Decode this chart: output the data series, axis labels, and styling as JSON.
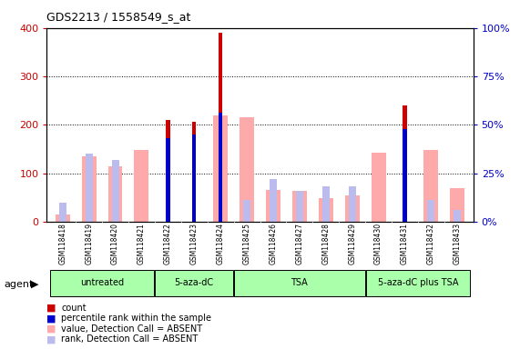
{
  "title": "GDS2213 / 1558549_s_at",
  "samples": [
    "GSM118418",
    "GSM118419",
    "GSM118420",
    "GSM118421",
    "GSM118422",
    "GSM118423",
    "GSM118424",
    "GSM118425",
    "GSM118426",
    "GSM118427",
    "GSM118428",
    "GSM118429",
    "GSM118430",
    "GSM118431",
    "GSM118432",
    "GSM118433"
  ],
  "count_values": [
    0,
    0,
    0,
    0,
    210,
    207,
    390,
    0,
    0,
    0,
    0,
    0,
    0,
    240,
    0,
    0
  ],
  "percentile_rank": [
    0,
    0,
    0,
    0,
    43,
    45,
    56,
    0,
    0,
    0,
    0,
    0,
    0,
    48,
    0,
    0
  ],
  "absent_value": [
    15,
    135,
    115,
    148,
    0,
    0,
    220,
    215,
    65,
    63,
    48,
    55,
    143,
    0,
    148,
    70
  ],
  "absent_rank_pct": [
    10,
    35,
    32,
    0,
    0,
    0,
    0,
    11,
    22,
    16,
    18,
    18,
    0,
    0,
    11,
    6
  ],
  "groups": [
    {
      "label": "untreated",
      "start": 0,
      "end": 3,
      "color": "#aaffaa"
    },
    {
      "label": "5-aza-dC",
      "start": 4,
      "end": 6,
      "color": "#aaffaa"
    },
    {
      "label": "TSA",
      "start": 7,
      "end": 11,
      "color": "#aaffaa"
    },
    {
      "label": "5-aza-dC plus TSA",
      "start": 12,
      "end": 15,
      "color": "#aaffaa"
    }
  ],
  "ylim_left": [
    0,
    400
  ],
  "ylim_right": [
    0,
    100
  ],
  "yticks_left": [
    0,
    100,
    200,
    300,
    400
  ],
  "yticks_right": [
    0,
    25,
    50,
    75,
    100
  ],
  "color_count": "#cc0000",
  "color_percentile": "#0000cc",
  "color_absent_value": "#ffaaaa",
  "color_absent_rank": "#bbbbee",
  "bg_plot": "#ffffff",
  "agent_label": "agent",
  "legend_items": [
    {
      "color": "#cc0000",
      "label": "count"
    },
    {
      "color": "#0000cc",
      "label": "percentile rank within the sample"
    },
    {
      "color": "#ffaaaa",
      "label": "value, Detection Call = ABSENT"
    },
    {
      "color": "#bbbbee",
      "label": "rank, Detection Call = ABSENT"
    }
  ]
}
